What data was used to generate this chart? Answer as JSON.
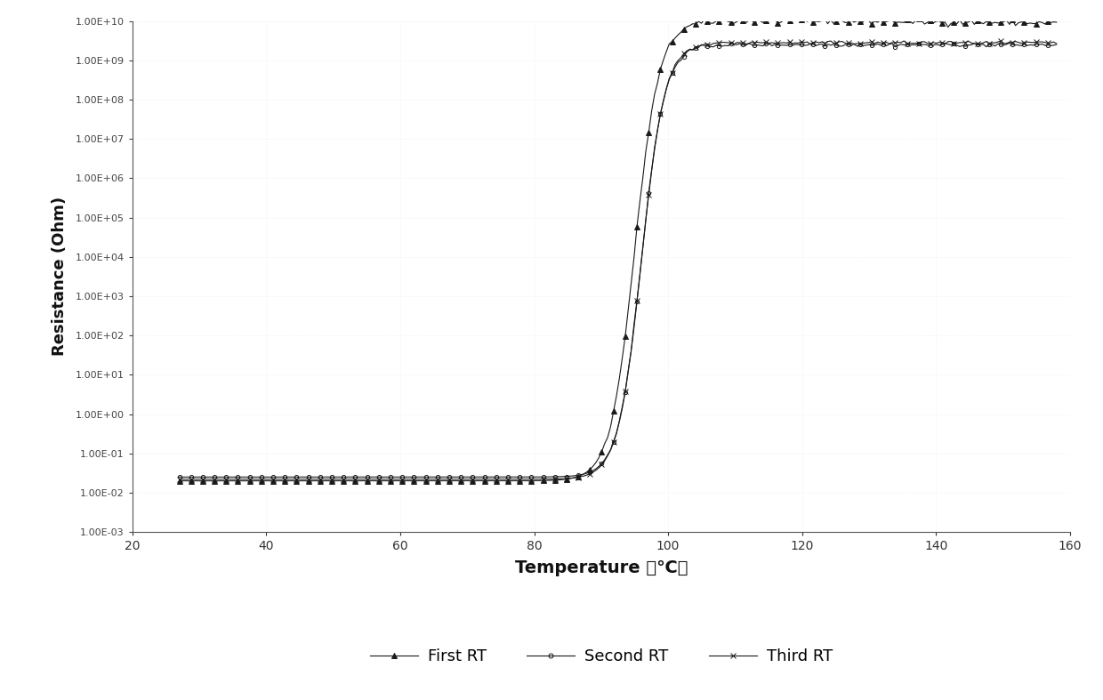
{
  "title": "",
  "xlabel": "Temperature （℃）",
  "ylabel": "Resistance (Ohm)",
  "xlim": [
    20,
    160
  ],
  "xticks": [
    20,
    40,
    60,
    80,
    100,
    120,
    140,
    160
  ],
  "background_color": "#ffffff",
  "series": [
    {
      "name": "First RT",
      "marker": "^",
      "color": "#1a1a1a",
      "lw": 0.8,
      "ms": 4
    },
    {
      "name": "Second RT",
      "marker": "o",
      "color": "#1a1a1a",
      "lw": 0.8,
      "ms": 3
    },
    {
      "name": "Third RT",
      "marker": "x",
      "color": "#1a1a1a",
      "lw": 0.8,
      "ms": 4
    }
  ],
  "ytick_labels": [
    "1.00E+10",
    "1.00E+09",
    "1.00E+08",
    "1.00E+07",
    "1.00E+06",
    "1.00E+05",
    "1.00E+04",
    "1.00E+03",
    "1.00E+02",
    "1.00E+01",
    "1.00E+00",
    "1.00E-01",
    "1.00E-02",
    "1.00E-03"
  ]
}
